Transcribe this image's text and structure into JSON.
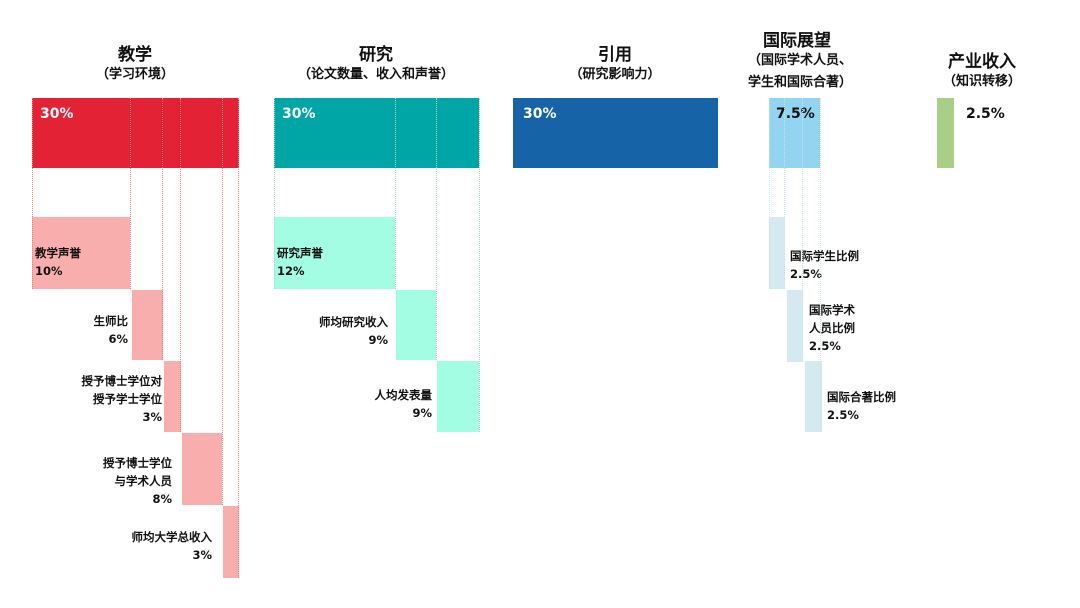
{
  "colors": {
    "teaching": "#e32236",
    "teaching_sub": "#f9aeae",
    "research": "#00a6a6",
    "research_sub": "#a3fde2",
    "citations": "#1763a8",
    "international": "#93d4f0",
    "international_sub": "#d5e9f0",
    "industry": "#a9cf87"
  },
  "teaching": {
    "title": "教学",
    "subtitle": "（学习环境）",
    "weight": "30%",
    "items": [
      {
        "name": "教学声誉",
        "weight": "10%"
      },
      {
        "name": "生师比",
        "weight": "6%"
      },
      {
        "name": "授予博士学位对\n授予学士学位",
        "weight": "3%"
      },
      {
        "name": "授予博士学位\n与学术人员",
        "weight": "8%"
      },
      {
        "name": "师均大学总收入",
        "weight": "3%"
      }
    ]
  },
  "research": {
    "title": "研究",
    "subtitle": "（论文数量、收入和声誉）",
    "weight": "30%",
    "items": [
      {
        "name": "研究声誉",
        "weight": "12%"
      },
      {
        "name": "师均研究收入",
        "weight": "9%"
      },
      {
        "name": "人均发表量",
        "weight": "9%"
      }
    ]
  },
  "citations": {
    "title": "引用",
    "subtitle": "（研究影响力）",
    "weight": "30%"
  },
  "international": {
    "title": "国际展望",
    "subtitle_1": "（国际学术人员、",
    "subtitle_2": "学生和国际合著）",
    "weight": "7.5%",
    "items": [
      {
        "name": "国际学生比例",
        "weight": "2.5%"
      },
      {
        "name": "国际学术\n人员比例",
        "weight": "2.5%"
      },
      {
        "name": "国际合著比例",
        "weight": "2.5%"
      }
    ]
  },
  "industry": {
    "title": "产业收入",
    "subtitle": "（知识转移）",
    "weight": "2.5%"
  }
}
